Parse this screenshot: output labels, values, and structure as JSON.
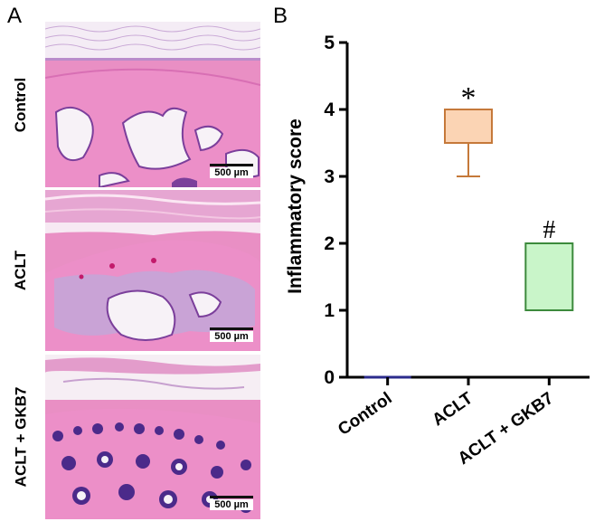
{
  "panel_a": {
    "letter": "A",
    "rows": [
      {
        "label": "Control",
        "scale": "500 µm"
      },
      {
        "label": "ACLT",
        "scale": "500 µm"
      },
      {
        "label": "ACLT + GKB7",
        "scale": "500 µm"
      }
    ]
  },
  "panel_b": {
    "letter": "B"
  },
  "chart_data": {
    "type": "box",
    "title": "",
    "xlabel": "",
    "ylabel": "Inflammatory score",
    "ylim": [
      0,
      5
    ],
    "yticks": [
      0,
      1,
      2,
      3,
      4,
      5
    ],
    "categories": [
      "Control",
      "ACLT",
      "ACLT + GKB7"
    ],
    "boxes": [
      {
        "category": "Control",
        "min": 0,
        "q1": 0,
        "median": 0,
        "q3": 0,
        "max": 0,
        "annotation": "",
        "fill": "#2b2b8c",
        "stroke": "#2b2b8c"
      },
      {
        "category": "ACLT",
        "min": 3,
        "q1": 3.5,
        "median": 3.5,
        "q3": 4,
        "max": 4,
        "annotation": "*",
        "fill": "#fbd4b4",
        "stroke": "#c5793a"
      },
      {
        "category": "ACLT + GKB7",
        "min": 1,
        "q1": 1,
        "median": 1,
        "q3": 2,
        "max": 2,
        "annotation": "#",
        "fill": "#c9f5c9",
        "stroke": "#3c8a3c"
      }
    ],
    "grid": false,
    "legend": "none"
  }
}
